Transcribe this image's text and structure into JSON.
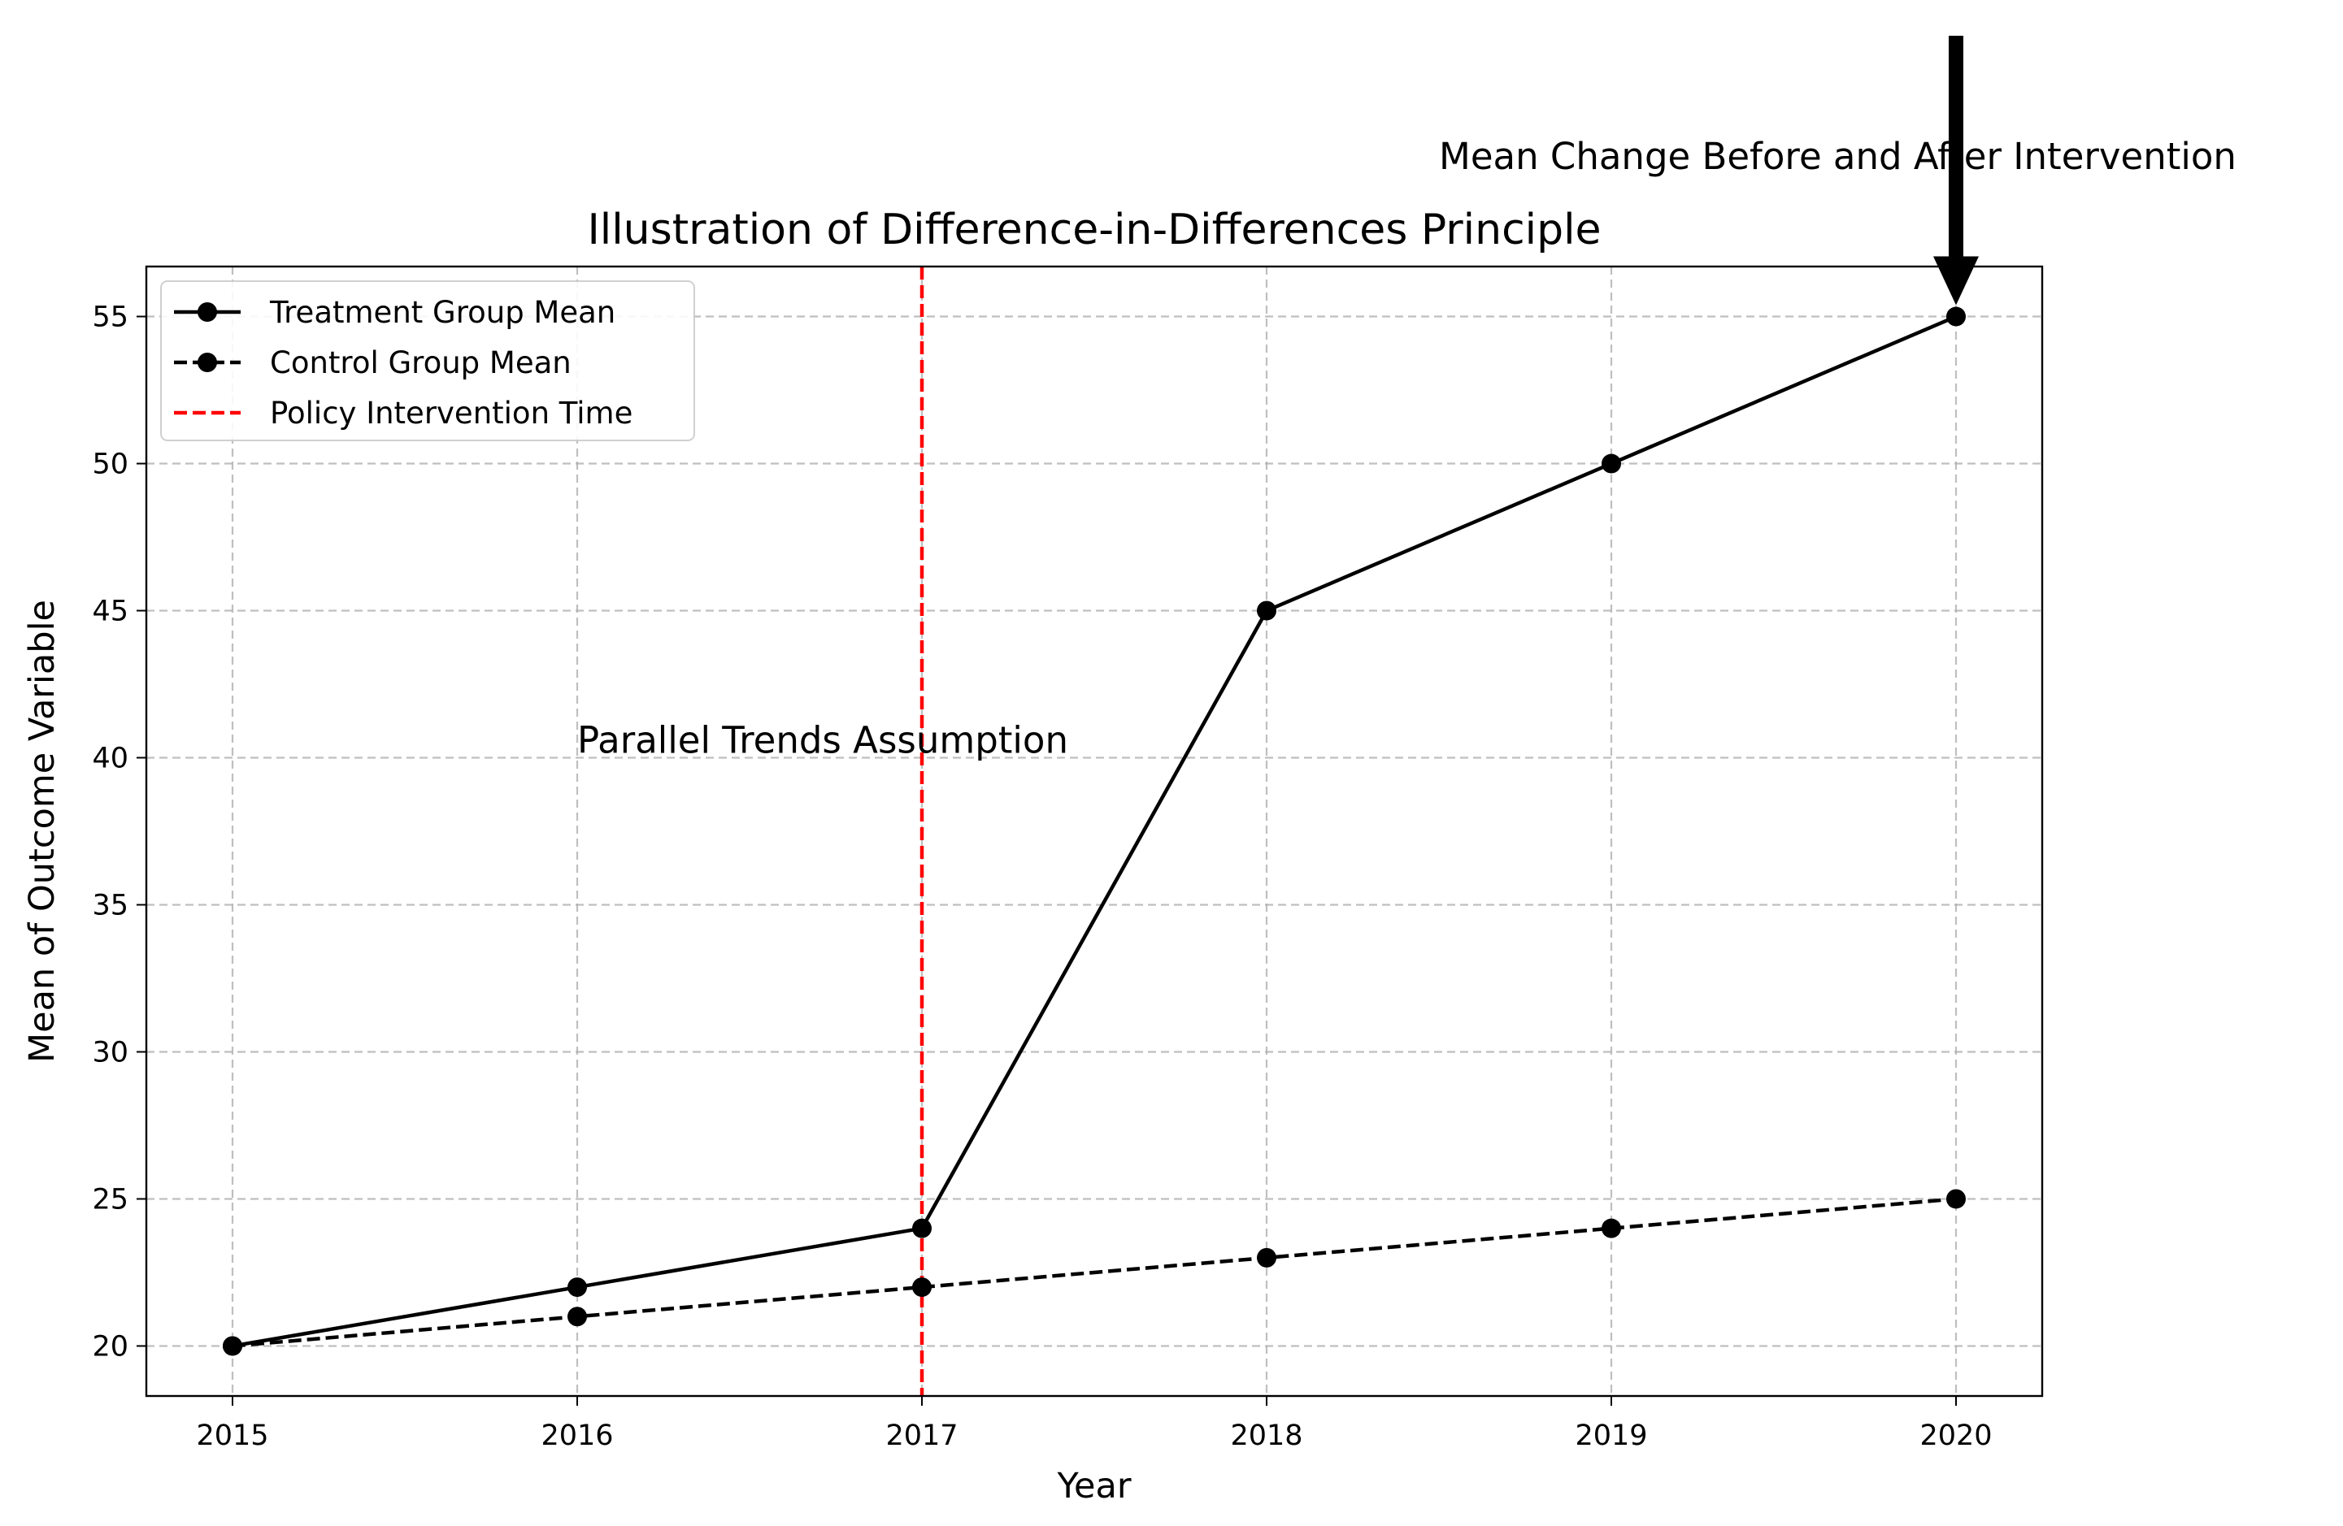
{
  "chart_data": {
    "type": "line",
    "title": "Illustration of Difference-in-Differences Principle",
    "xlabel": "Year",
    "ylabel": "Mean of Outcome Variable",
    "x": [
      2015,
      2016,
      2017,
      2018,
      2019,
      2020
    ],
    "x_tick_labels": [
      "2015",
      "2016",
      "2017",
      "2018",
      "2019",
      "2020"
    ],
    "xlim": [
      2014.75,
      2020.25
    ],
    "y_ticks": [
      20,
      25,
      30,
      35,
      40,
      45,
      50,
      55
    ],
    "y_tick_labels": [
      "20",
      "25",
      "30",
      "35",
      "40",
      "45",
      "50",
      "55"
    ],
    "ylim": [
      18.3,
      56.7
    ],
    "grid": true,
    "legend_position": "upper-left",
    "series": [
      {
        "name": "Treatment Group Mean",
        "values": [
          20,
          22,
          24,
          45,
          50,
          55
        ],
        "color": "#000000",
        "style": "solid",
        "marker": "circle"
      },
      {
        "name": "Control Group Mean",
        "values": [
          20,
          21,
          22,
          23,
          24,
          25
        ],
        "color": "#000000",
        "style": "dashed",
        "marker": "circle"
      }
    ],
    "vline": {
      "name": "Policy Intervention Time",
      "x": 2017,
      "color": "#ff0000",
      "style": "dashed"
    },
    "annotations": [
      {
        "text": "Parallel Trends Assumption",
        "x": 2016,
        "y": 40
      },
      {
        "text": "Mean Change Before and After Intervention",
        "x": 2018.5,
        "y": 60,
        "arrow_to": {
          "x": 2020,
          "y": 55
        }
      }
    ]
  }
}
